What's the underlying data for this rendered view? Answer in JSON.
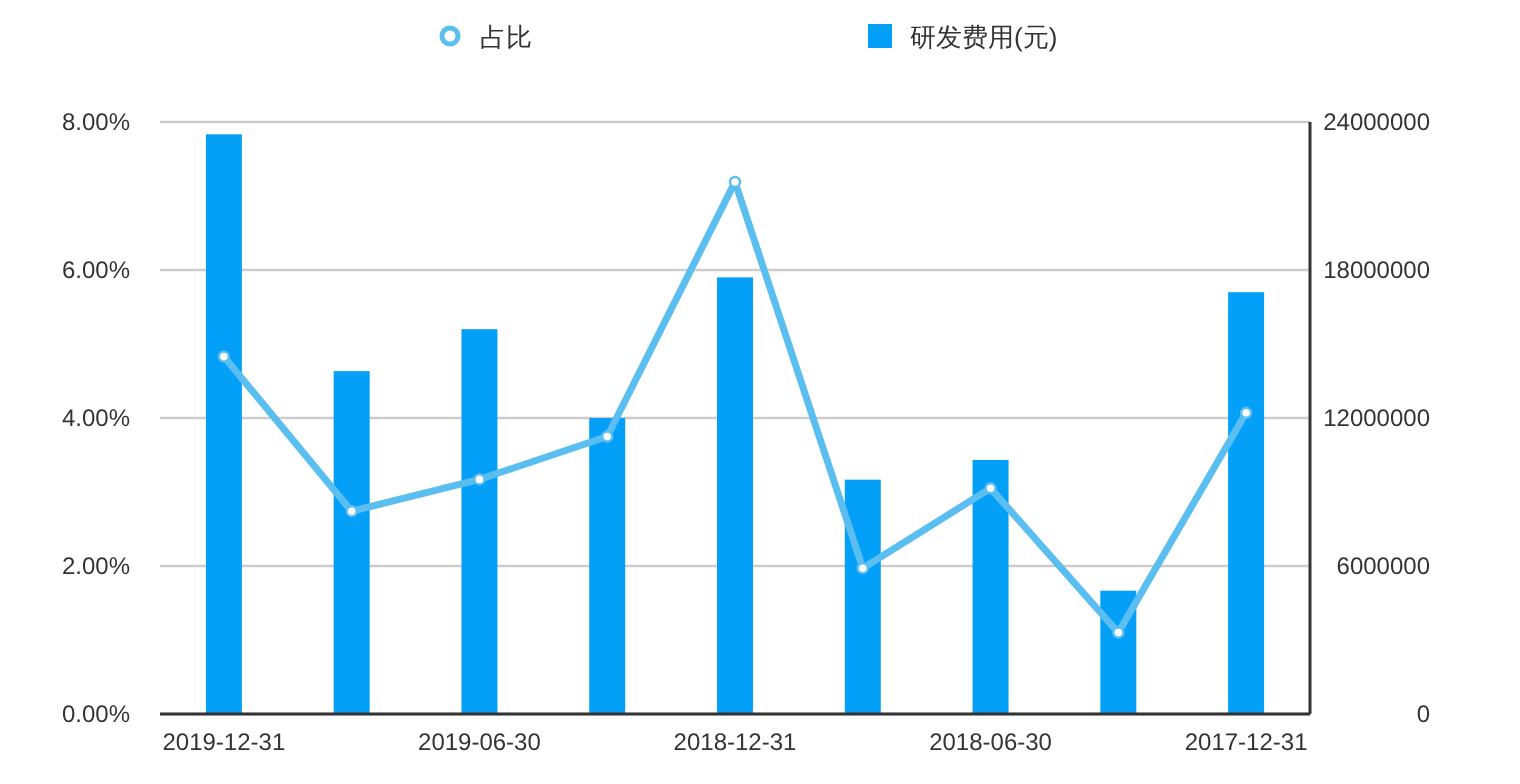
{
  "chart_data": {
    "type": "bar",
    "categories": [
      "2019-12-31",
      null,
      "2019-06-30",
      null,
      "2018-12-31",
      null,
      "2018-06-30",
      null,
      "2017-12-31"
    ],
    "series": [
      {
        "name": "占比",
        "type": "line",
        "axis": "y",
        "color": "#5bbef0",
        "marker": "circle",
        "values": [
          4.83,
          2.74,
          3.17,
          3.75,
          7.19,
          1.97,
          3.05,
          1.1,
          4.07
        ]
      },
      {
        "name": "研发费用(元)",
        "axis": "y2",
        "color": "#04a0f7",
        "values": [
          23500000,
          13900000,
          15600000,
          12000000,
          17700000,
          9500000,
          10300000,
          5000000,
          17100000
        ]
      }
    ],
    "ylim": [
      0,
      8
    ],
    "yticks": [
      {
        "value": 0,
        "label": "0.00%"
      },
      {
        "value": 2,
        "label": "2.00%"
      },
      {
        "value": 4,
        "label": "4.00%"
      },
      {
        "value": 6,
        "label": "6.00%"
      },
      {
        "value": 8,
        "label": "8.00%"
      }
    ],
    "y2lim": [
      0,
      24000000
    ],
    "y2ticks": [
      0,
      6000000,
      12000000,
      18000000,
      24000000
    ],
    "grid": "y",
    "legend": "top"
  }
}
